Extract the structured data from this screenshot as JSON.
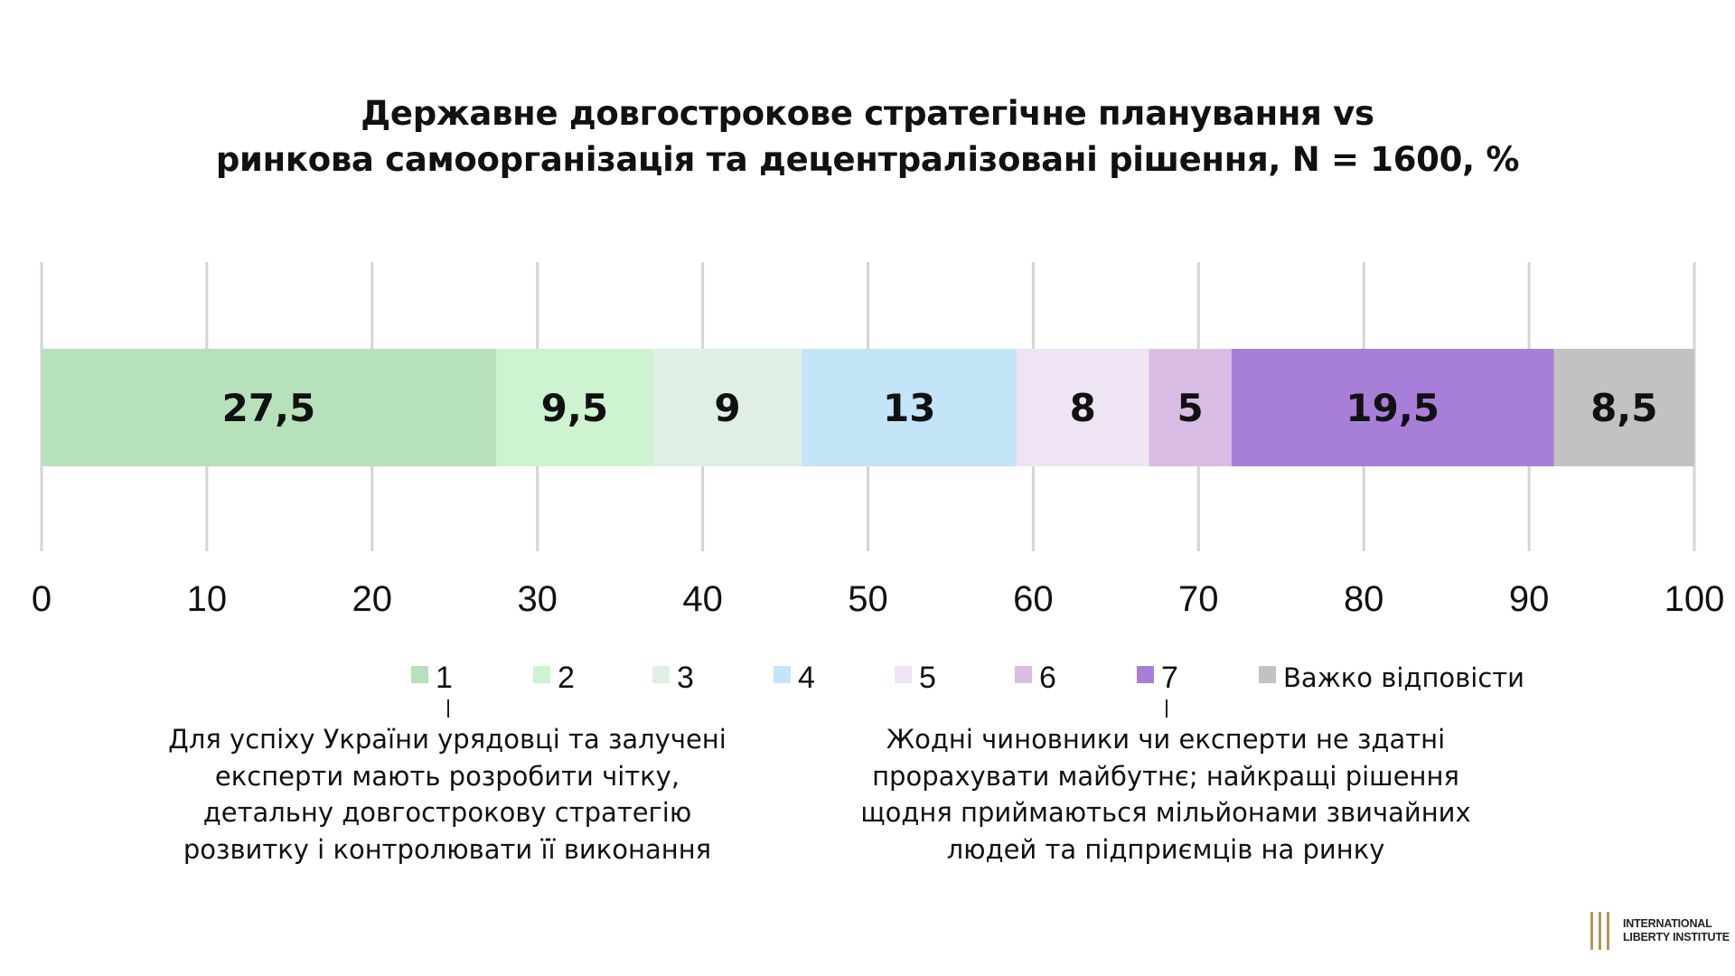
{
  "title_lines": [
    "Державне довгострокове стратегічне планування vs",
    "ринкова самоорганізація та децентралізовані рішення, N = 1600, %"
  ],
  "chart_data": {
    "type": "bar",
    "orientation": "horizontal-stacked",
    "title": "Державне довгострокове стратегічне планування vs ринкова самоорганізація та децентралізовані рішення, N = 1600, %",
    "xlim": [
      0,
      100
    ],
    "x_ticks": [
      0,
      10,
      20,
      30,
      40,
      50,
      60,
      70,
      80,
      90,
      100
    ],
    "grid": true,
    "legend_position": "bottom",
    "series": [
      {
        "name": "1",
        "value": 27.5,
        "label": "27,5",
        "color": "#b7e1bb"
      },
      {
        "name": "2",
        "value": 9.5,
        "label": "9,5",
        "color": "#cdf3d1"
      },
      {
        "name": "3",
        "value": 9,
        "label": "9",
        "color": "#e0efe4"
      },
      {
        "name": "4",
        "value": 13,
        "label": "13",
        "color": "#c4e4f8"
      },
      {
        "name": "5",
        "value": 8,
        "label": "8",
        "color": "#efe4f4"
      },
      {
        "name": "6",
        "value": 5,
        "label": "5",
        "color": "#d9bce4"
      },
      {
        "name": "7",
        "value": 19.5,
        "label": "19,5",
        "color": "#a87fd8"
      },
      {
        "name": "Важко відповісти",
        "value": 8.5,
        "label": "8,5",
        "color": "#c2c2c2"
      }
    ]
  },
  "annotations": {
    "left_lines": [
      "Для успіху України урядовці та залучені",
      "експерти мають розробити чітку,",
      "детальну довгострокову стратегію",
      "розвитку і контролювати її виконання"
    ],
    "right_lines": [
      "Жодні чиновники чи експерти не здатні",
      "прорахувати майбутнє; найкращі рішення",
      "щодня приймаються мільйонами звичайних",
      "людей та підприємців на ринку"
    ]
  },
  "logo": {
    "line1": "INTERNATIONAL",
    "line2": "LIBERTY INSTITUTE",
    "color": "#b8935a"
  }
}
